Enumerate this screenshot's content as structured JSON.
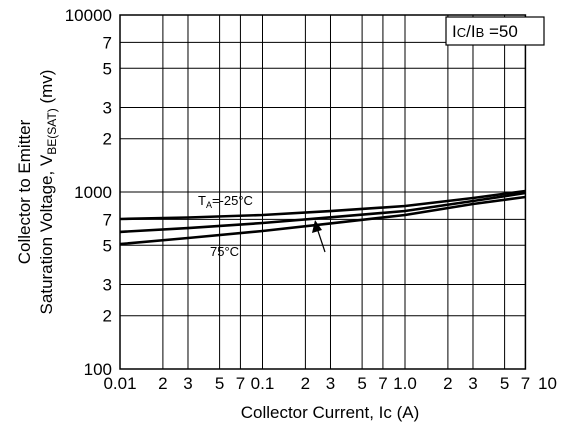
{
  "chart_data": {
    "type": "line",
    "x_label": "Collector Current, Ic (A)",
    "y_label": {
      "line1": "Collector to Emitter",
      "line2": "Saturation Voltage, V",
      "sub": "BE(SAT)",
      "unit": " (mv)"
    },
    "log_x": true,
    "log_y": true,
    "grid": true,
    "xlim": [
      0.01,
      7
    ],
    "ylim": [
      100,
      10000
    ],
    "xticks": [
      0.01,
      {
        "value": 0.02,
        "label": "2"
      },
      {
        "value": 0.03,
        "label": "3"
      },
      {
        "value": 0.05,
        "label": "5"
      },
      {
        "value": 0.07,
        "label": "7"
      },
      0.1,
      {
        "value": 0.2,
        "label": "2"
      },
      {
        "value": 0.3,
        "label": "3"
      },
      {
        "value": 0.5,
        "label": "5"
      },
      {
        "value": 0.7,
        "label": "7"
      },
      {
        "value": 1,
        "label": "1.0"
      },
      2,
      3,
      5,
      7,
      10
    ],
    "yticks": [
      100,
      {
        "value": 200,
        "label": "2"
      },
      {
        "value": 300,
        "label": "3"
      },
      {
        "value": 500,
        "label": "5"
      },
      {
        "value": 700,
        "label": "7"
      },
      1000,
      {
        "value": 2000,
        "label": "2"
      },
      {
        "value": 3000,
        "label": "3"
      },
      {
        "value": 5000,
        "label": "5"
      },
      {
        "value": 7000,
        "label": "7"
      },
      10000
    ],
    "x": [
      0.01,
      0.03,
      0.1,
      0.3,
      1,
      3,
      7
    ],
    "series": [
      {
        "color": "#000000",
        "values": [
          704,
          718,
          741,
          780,
          834,
          925,
          1013
        ]
      },
      {
        "color": "#000000",
        "values": [
          595,
          625,
          668,
          720,
          781,
          889,
          987
        ]
      },
      {
        "color": "#000000",
        "values": [
          508,
          550,
          602,
          665,
          741,
          855,
          937
        ]
      }
    ],
    "annotations": {
      "cold": {
        "main": "T",
        "sub": "A",
        "rest": "=-25°C"
      },
      "hot": "75°C",
      "condition": {
        "i1": "I",
        "s1": "C",
        "i2": "/I",
        "s2": "B",
        "rest": " =50"
      }
    }
  }
}
